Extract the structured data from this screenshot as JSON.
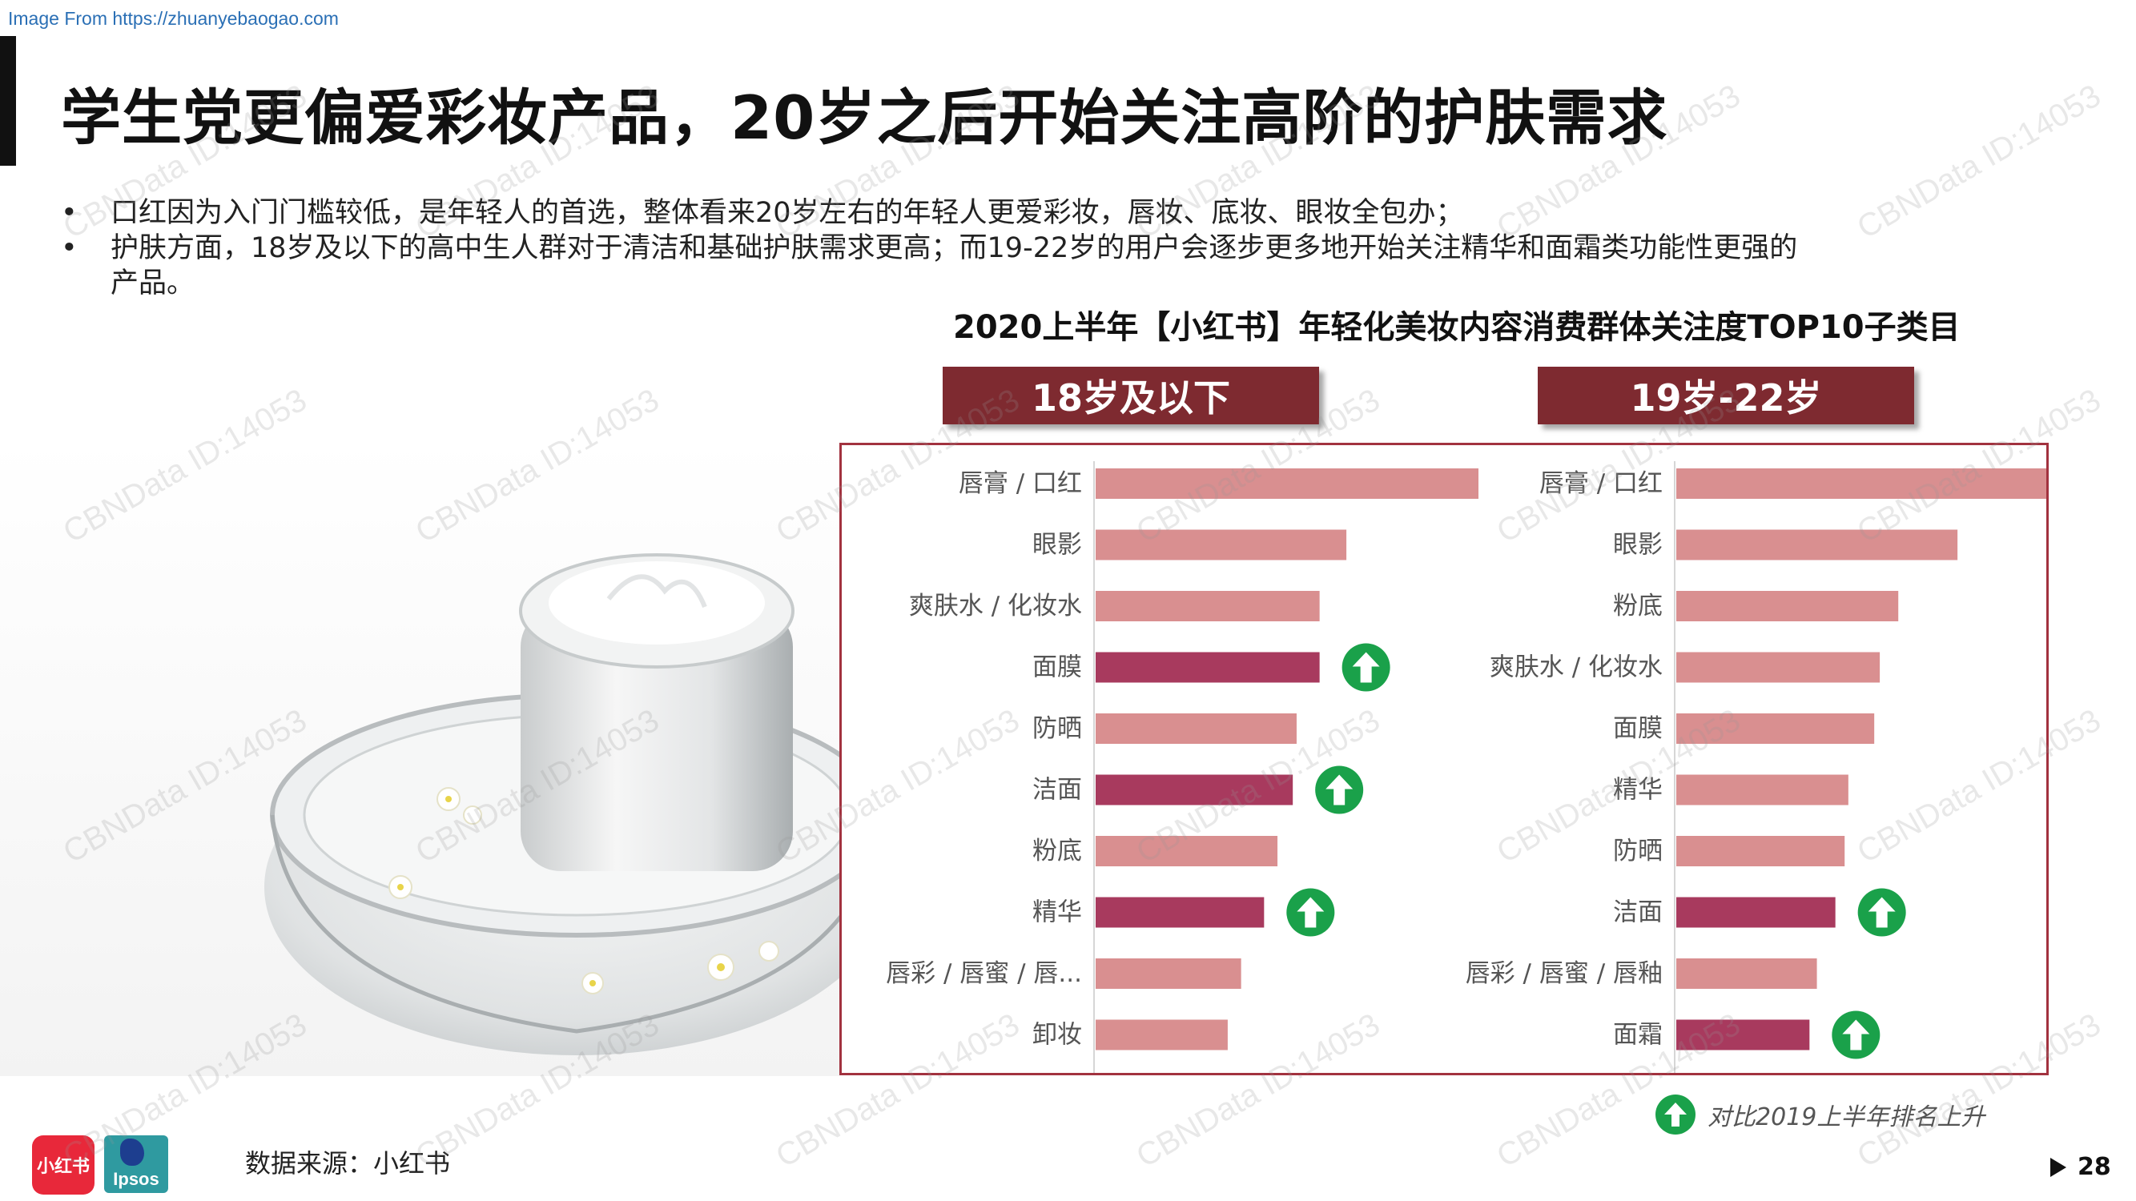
{
  "source_url": "Image From https://zhuanyebaogao.com",
  "title": "学生党更偏爱彩妆产品，20岁之后开始关注高阶的护肤需求",
  "bullets": [
    "口红因为入门门槛较低，是年轻人的首选，整体看来20岁左右的年轻人更爱彩妆，唇妆、底妆、眼妆全包办；",
    "护肤方面，18岁及以下的高中生人群对于清洁和基础护肤需求更高；而19-22岁的用户会逐步更多地开始关注精华和面霜类功能性更强的产品。"
  ],
  "bullet_marker": "•",
  "watermark_text": "CBNData ID:14053",
  "colors": {
    "bar_normal": "#d98f90",
    "bar_highlight": "#a83a5e",
    "header_bg": "#7e2a30",
    "frame": "#a2323f",
    "arrow_green": "#1aa14a"
  },
  "chart_data": [
    {
      "type": "bar",
      "orientation": "horizontal",
      "title": "2020上半年【小红书】年轻化美妆内容消费群体关注度TOP10子类目",
      "group_label": "18岁及以下",
      "categories": [
        "唇膏 / 口红",
        "眼影",
        "爽肤水 / 化妆水",
        "面膜",
        "防晒",
        "洁面",
        "粉底",
        "精华",
        "唇彩 / 唇蜜 / 唇...",
        "卸妆"
      ],
      "values": [
        100,
        65.5,
        58.5,
        58.5,
        52.5,
        51.5,
        47.5,
        44,
        38,
        34.5
      ],
      "rank_up_2019": [
        false,
        false,
        false,
        true,
        false,
        true,
        false,
        true,
        false,
        false
      ],
      "xlim": [
        0,
        100
      ],
      "grid": false,
      "legend": "bottom-right"
    },
    {
      "type": "bar",
      "orientation": "horizontal",
      "group_label": "19岁-22岁",
      "categories": [
        "唇膏 / 口红",
        "眼影",
        "粉底",
        "爽肤水 / 化妆水",
        "面膜",
        "精华",
        "防晒",
        "洁面",
        "唇彩 / 唇蜜 / 唇釉",
        "面霜"
      ],
      "values": [
        100,
        76,
        60,
        55,
        53.5,
        46.5,
        45.5,
        43,
        38,
        36
      ],
      "rank_up_2019": [
        false,
        false,
        false,
        false,
        false,
        false,
        false,
        true,
        false,
        true
      ],
      "xlim": [
        0,
        100
      ],
      "grid": false
    }
  ],
  "legend_text": "对比2019上半年排名上升",
  "data_source": "数据来源：小红书",
  "logos": {
    "xhs": "小红书",
    "ipsos": "Ipsos"
  },
  "page_number": "28"
}
